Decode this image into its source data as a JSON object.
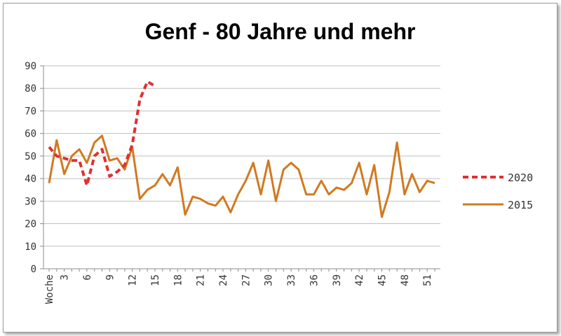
{
  "chart_data": {
    "type": "line",
    "title": "Genf - 80 Jahre und mehr",
    "xlabel": "",
    "ylabel": "",
    "x_first_label": "Woche",
    "x_tick_labels": [
      "3",
      "6",
      "9",
      "12",
      "15",
      "18",
      "21",
      "24",
      "27",
      "30",
      "33",
      "36",
      "39",
      "42",
      "45",
      "48",
      "51"
    ],
    "x_tick_weeks": [
      3,
      6,
      9,
      12,
      15,
      18,
      21,
      24,
      27,
      30,
      33,
      36,
      39,
      42,
      45,
      48,
      51
    ],
    "x_range": [
      1,
      52
    ],
    "ylim": [
      0,
      90
    ],
    "yticks": [
      0,
      10,
      20,
      30,
      40,
      50,
      60,
      70,
      80,
      90
    ],
    "grid": true,
    "legend_position": "right",
    "series": [
      {
        "name": "2020",
        "color": "#e03030",
        "style": "dashed",
        "x": [
          1,
          2,
          3,
          4,
          5,
          6,
          7,
          8,
          9,
          10,
          11,
          12,
          13,
          14,
          15
        ],
        "values": [
          54,
          50,
          49,
          48,
          48,
          37,
          50,
          53,
          41,
          43,
          46,
          55,
          75,
          83,
          81
        ]
      },
      {
        "name": "2015",
        "color": "#d07a20",
        "style": "solid",
        "x": [
          1,
          2,
          3,
          4,
          5,
          6,
          7,
          8,
          9,
          10,
          11,
          12,
          13,
          14,
          15,
          16,
          17,
          18,
          19,
          20,
          21,
          22,
          23,
          24,
          25,
          26,
          27,
          28,
          29,
          30,
          31,
          32,
          33,
          34,
          35,
          36,
          37,
          38,
          39,
          40,
          41,
          42,
          43,
          44,
          45,
          46,
          47,
          48,
          49,
          50,
          51,
          52
        ],
        "values": [
          38,
          57,
          42,
          50,
          53,
          47,
          56,
          59,
          48,
          49,
          44,
          54,
          31,
          35,
          37,
          42,
          37,
          45,
          24,
          32,
          31,
          29,
          28,
          32,
          25,
          33,
          39,
          47,
          33,
          48,
          30,
          44,
          47,
          44,
          33,
          33,
          39,
          33,
          36,
          35,
          38,
          47,
          33,
          46,
          23,
          34,
          56,
          33,
          42,
          34,
          39,
          38
        ]
      }
    ]
  }
}
